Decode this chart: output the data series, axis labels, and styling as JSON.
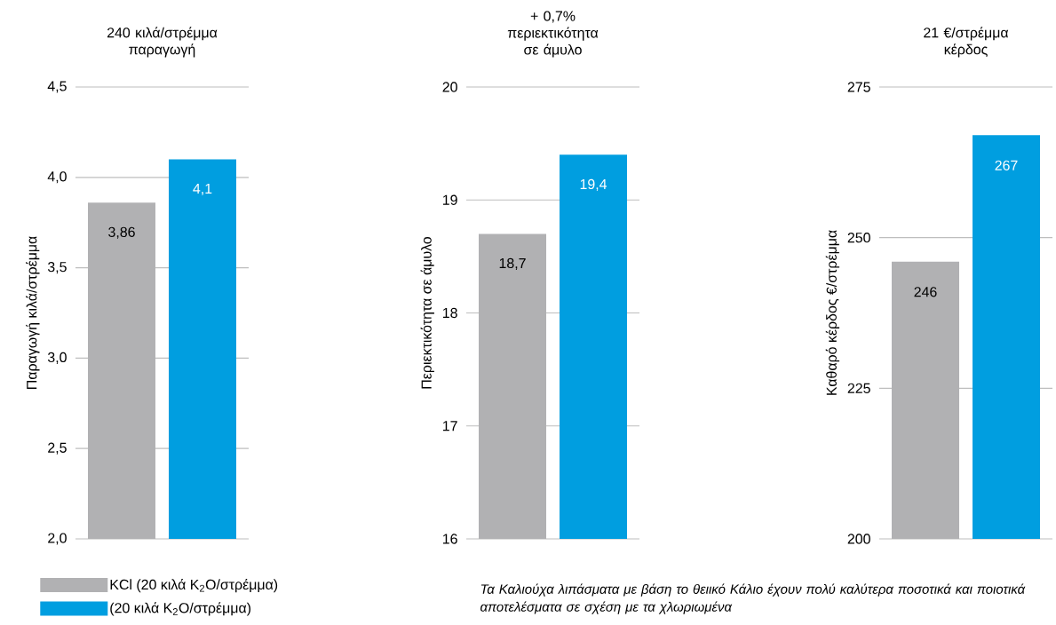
{
  "chart_data": [
    {
      "type": "bar",
      "title": "240 κιλά/στρέμμα παραγωγή",
      "ylabel": "Παραγωγή κιλά/στρέμμα",
      "categories": [
        null
      ],
      "series": [
        {
          "name": "KCl (20 κιλά K$_{2}$O/στρέμμα)",
          "color": "#b1b1b3",
          "values": [
            3.86
          ],
          "value_labels": [
            "3,86"
          ]
        },
        {
          "name": "(20 κιλά K$_{2}$O/στρέμμα)",
          "color": "#009ee0",
          "values": [
            4.1
          ],
          "value_labels": [
            "4,1"
          ]
        }
      ],
      "ylim": [
        2.0,
        4.5
      ],
      "yticks": [
        {
          "value": 2.0,
          "label": "2,0"
        },
        {
          "value": 2.5,
          "label": "2,5"
        },
        {
          "value": 3.0,
          "label": "3,0"
        },
        {
          "value": 3.5,
          "label": "3,5"
        },
        {
          "value": 4.0,
          "label": "4,0"
        },
        {
          "value": 4.5,
          "label": "4,5"
        }
      ],
      "grid": "y",
      "legend": "bottom"
    },
    {
      "type": "bar",
      "title": "+ 0,7% περιεκτικότητα σε άμυλο",
      "ylabel": "Περιεκτικότητα σε άμυλο",
      "categories": [
        null
      ],
      "series": [
        {
          "color": "#b1b1b3",
          "values": [
            18.7
          ],
          "value_labels": [
            "18,7"
          ]
        },
        {
          "color": "#009ee0",
          "values": [
            19.4
          ],
          "value_labels": [
            "19,4"
          ]
        }
      ],
      "ylim": [
        16,
        20
      ],
      "yticks": [
        16,
        17,
        18,
        19,
        20
      ],
      "grid": "y"
    },
    {
      "type": "bar",
      "title": "21 €/στρέμμα κέρδος",
      "ylabel": "Καθαρό κέρδος €/στρέμμα",
      "categories": [
        null
      ],
      "series": [
        {
          "color": "#b1b1b3",
          "values": [
            246
          ],
          "value_labels": [
            "246"
          ]
        },
        {
          "color": "#009ee0",
          "values": [
            267
          ],
          "value_labels": [
            "267"
          ]
        }
      ],
      "ylim": [
        200,
        275
      ],
      "yticks": [
        200,
        225,
        250,
        275
      ],
      "grid": "y",
      "annotations": [
        "Τα Καλιούχα λιπάσματα με βάση το θειικό Κάλιο έχουν πολύ καλύτερα ποσοτικά και ποιοτικά αποτελέσματα σε σχέση με τα χλωριωμένα"
      ]
    }
  ]
}
